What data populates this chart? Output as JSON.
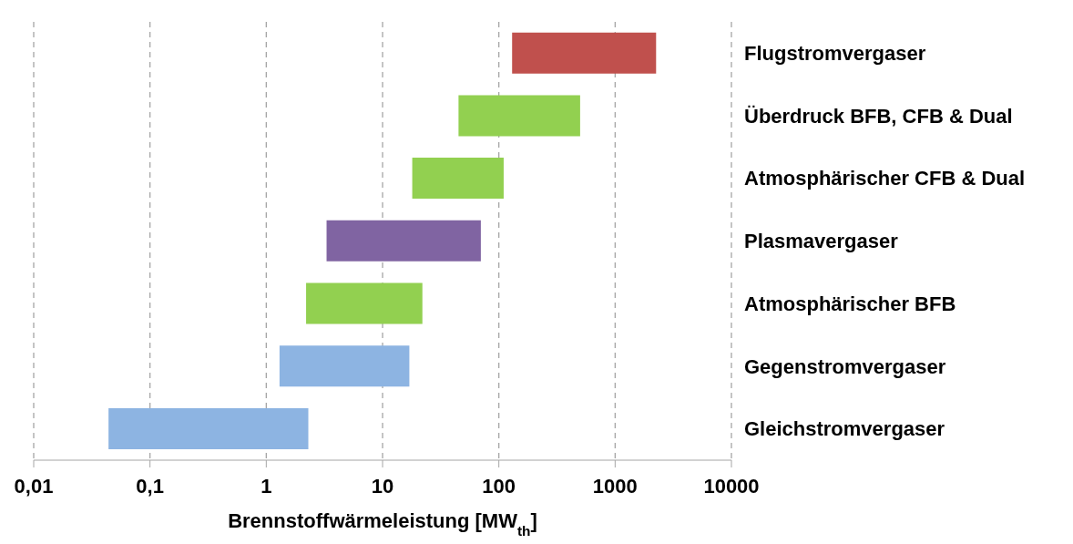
{
  "chart_data": {
    "type": "bar",
    "orientation": "horizontal",
    "xlabel": "Brennstoffwärmeleistung [MW$_{th}$]",
    "categories": [
      "Flugstromvergaser",
      "Überdruck BFB, CFB & Dual",
      "Atmosphärischer CFB & Dual",
      "Plasmavergaser",
      "Atmosphärischer BFB",
      "Gegenstromvergaser",
      "Gleichstromvergaser"
    ],
    "base": [
      130,
      45,
      18,
      3.3,
      2.2,
      1.3,
      0.044
    ],
    "values": [
      2120,
      455,
      92,
      66.7,
      19.8,
      15.7,
      2.256
    ],
    "colors": [
      "#c0504d",
      "#92d050",
      "#92d050",
      "#8064a2",
      "#92d050",
      "#8db4e2",
      "#8db4e2"
    ],
    "log": "x",
    "xlim": [
      0.01,
      10000
    ],
    "xticks": [
      {
        "value": 0.01,
        "label": "0,01"
      },
      {
        "value": 0.1,
        "label": "0,1"
      },
      1,
      10,
      100,
      1000,
      10000
    ],
    "grid": "x"
  }
}
